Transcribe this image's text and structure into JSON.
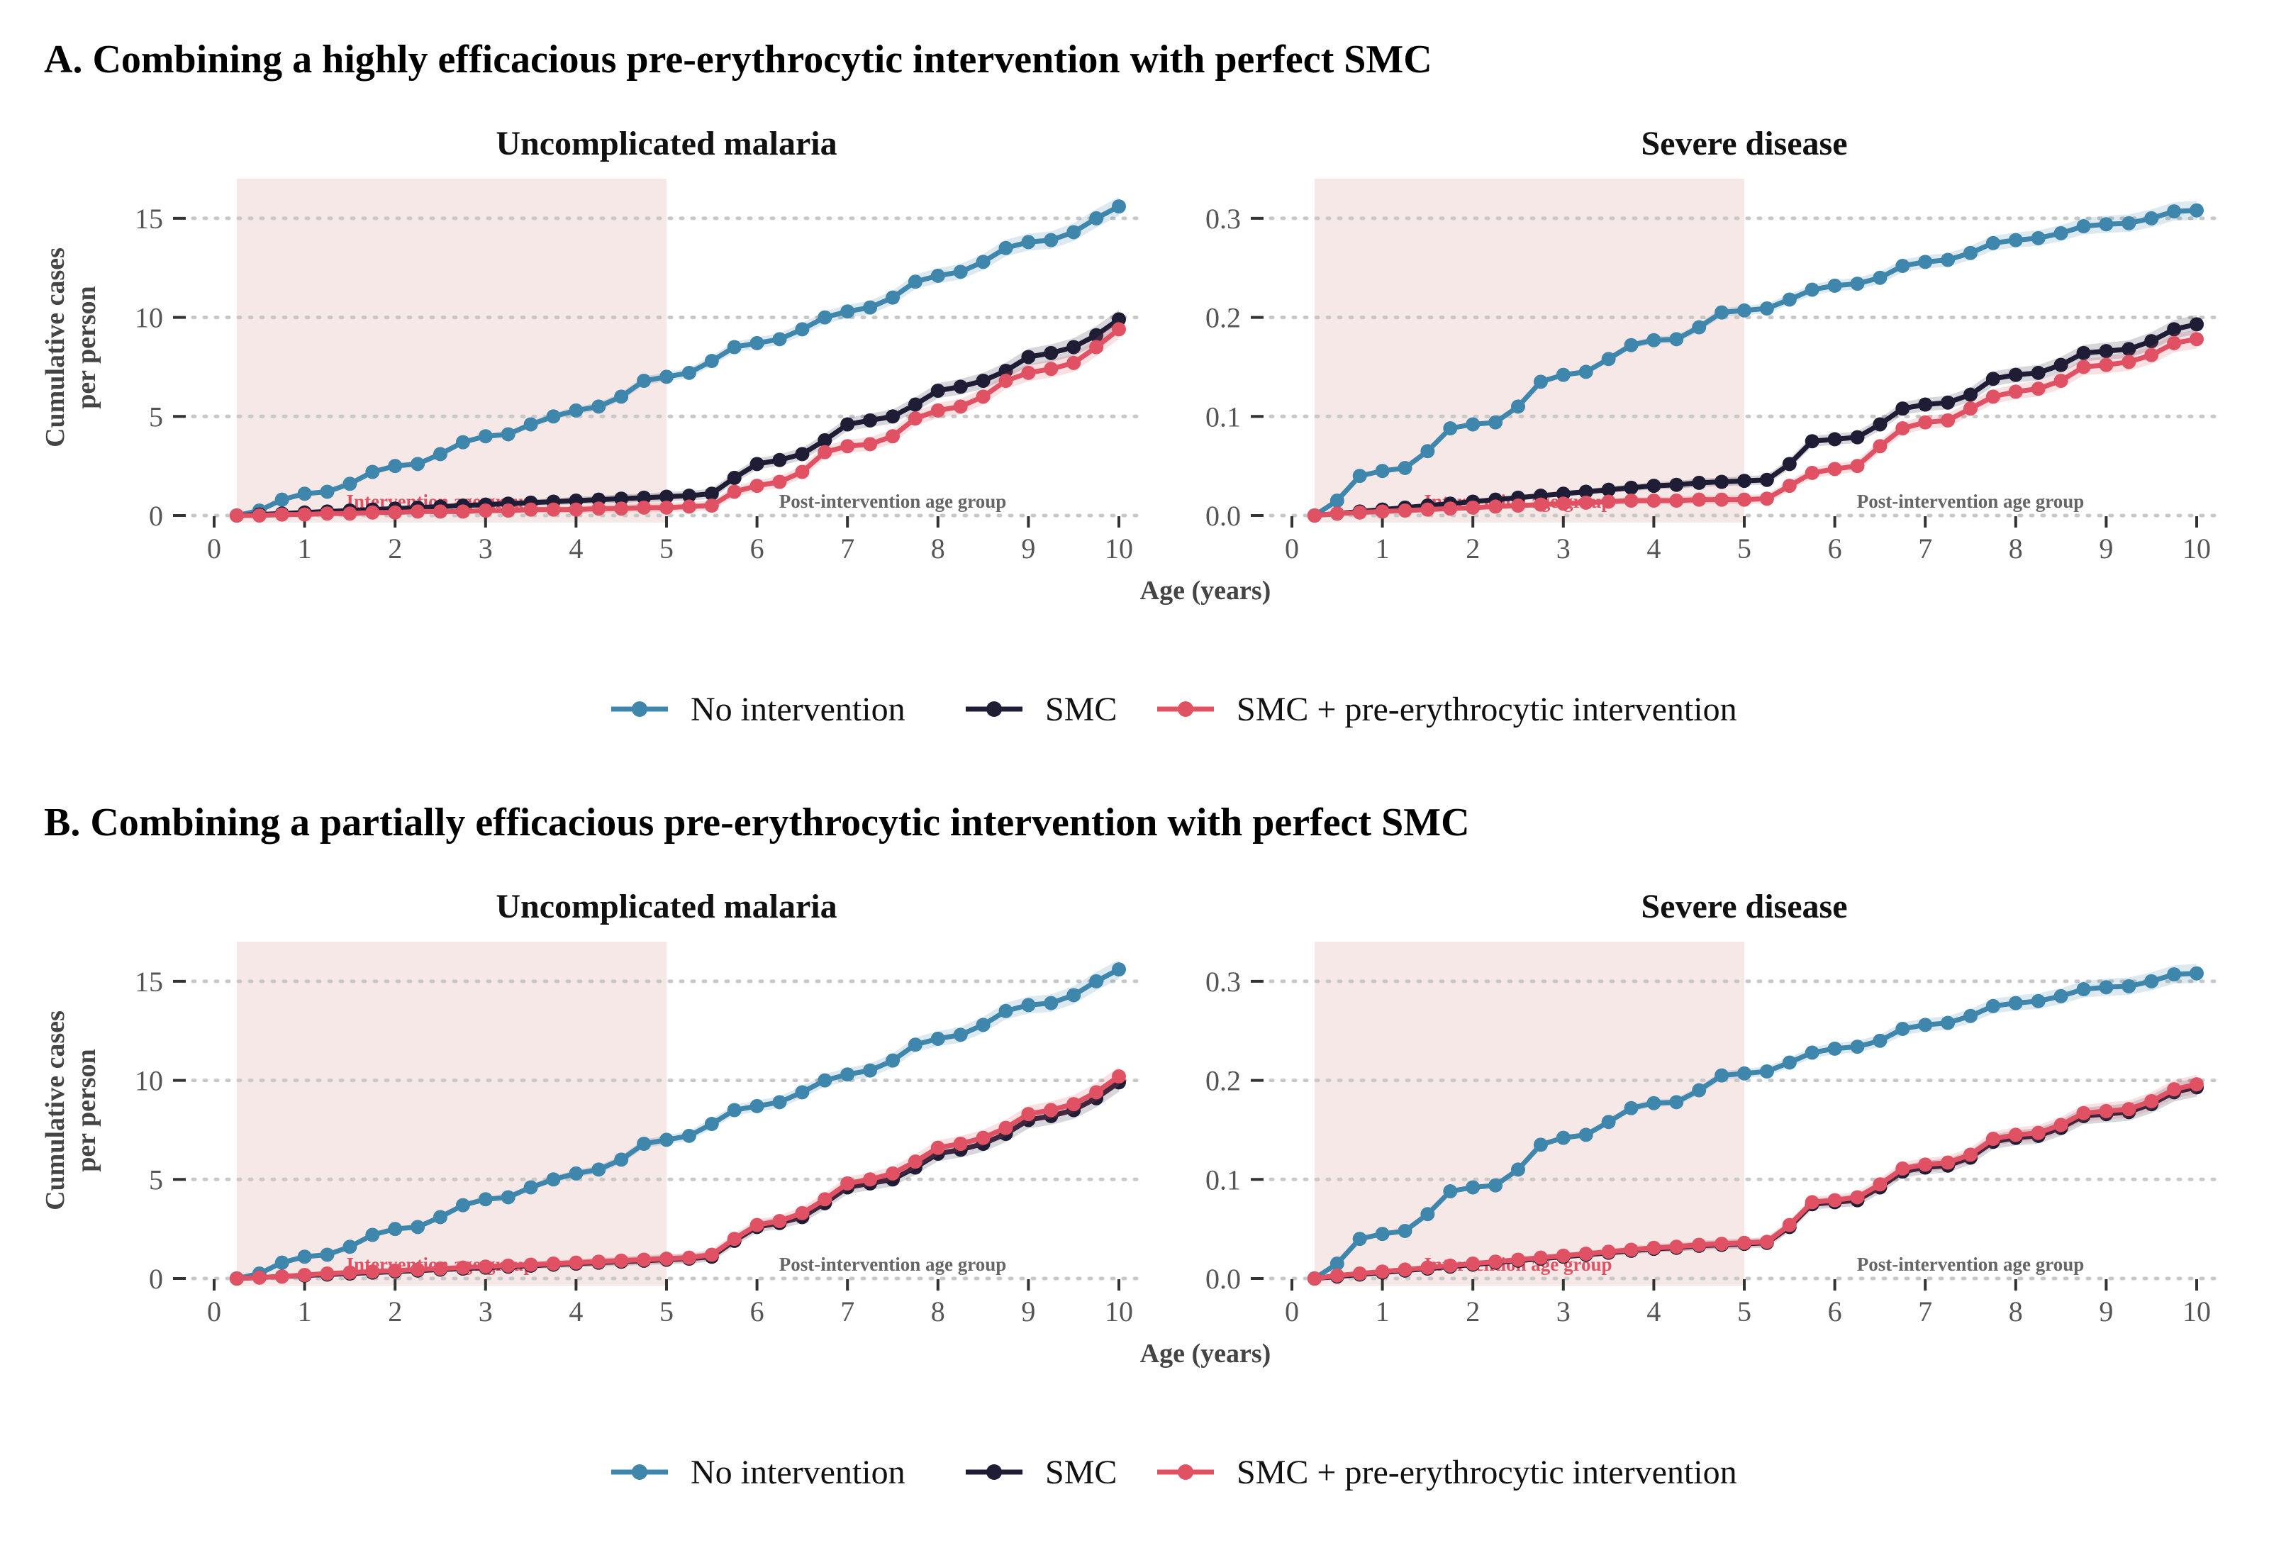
{
  "colors": {
    "no_intervention": "#3f86ad",
    "smc": "#1f1d36",
    "smc_pre": "#e05263",
    "shade": "#f6e8e6",
    "grid": "#c8c8c8"
  },
  "legend": [
    "No intervention",
    "SMC",
    "SMC + pre-erythrocytic intervention"
  ],
  "chart_data": [
    {
      "type": "line",
      "title": "A. Combining a highly efficacious pre-erythrocytic intervention with perfect SMC",
      "xlabel": "Age (years)",
      "ylabel": "Cumulative cases per person",
      "xlim": [
        0,
        10
      ],
      "x_ticks": [
        0,
        1,
        2,
        3,
        4,
        5,
        6,
        7,
        8,
        9,
        10
      ],
      "grid": "horizontal dotted",
      "legend_position": "bottom",
      "shaded_region": {
        "x": [
          0.25,
          5
        ],
        "labels": [
          "Intervention age group",
          "Post-intervention age group"
        ]
      },
      "facets": [
        {
          "title": "Uncomplicated malaria",
          "ylim": [
            0,
            17
          ],
          "y_ticks": [
            0,
            5,
            10,
            15
          ],
          "y_tick_labels": [
            "0",
            "5",
            "10",
            "15"
          ],
          "x_start": 0.25,
          "x_step": 0.25,
          "series": [
            {
              "name": "No intervention",
              "values": [
                0,
                0.25,
                0.8,
                1.1,
                1.2,
                1.6,
                2.2,
                2.5,
                2.6,
                3.1,
                3.7,
                4.0,
                4.1,
                4.6,
                5.0,
                5.3,
                5.5,
                6.0,
                6.8,
                7.0,
                7.2,
                7.8,
                8.5,
                8.7,
                8.9,
                9.4,
                10.0,
                10.3,
                10.5,
                11.0,
                11.8,
                12.1,
                12.3,
                12.8,
                13.5,
                13.8,
                13.9,
                14.3,
                15.0,
                15.6
              ]
            },
            {
              "name": "SMC",
              "values": [
                0,
                0.05,
                0.1,
                0.15,
                0.2,
                0.25,
                0.3,
                0.35,
                0.4,
                0.45,
                0.5,
                0.55,
                0.6,
                0.65,
                0.7,
                0.75,
                0.8,
                0.85,
                0.9,
                0.95,
                1.0,
                1.1,
                1.9,
                2.6,
                2.8,
                3.1,
                3.8,
                4.6,
                4.8,
                5.0,
                5.6,
                6.3,
                6.5,
                6.8,
                7.3,
                8.0,
                8.2,
                8.5,
                9.1,
                9.9
              ]
            },
            {
              "name": "SMC + pre-erythrocytic intervention",
              "values": [
                0,
                0.0,
                0.05,
                0.05,
                0.1,
                0.1,
                0.15,
                0.15,
                0.2,
                0.2,
                0.2,
                0.25,
                0.25,
                0.3,
                0.3,
                0.3,
                0.35,
                0.35,
                0.4,
                0.4,
                0.45,
                0.5,
                1.2,
                1.5,
                1.7,
                2.2,
                3.2,
                3.5,
                3.6,
                4.0,
                4.9,
                5.3,
                5.5,
                6.0,
                6.8,
                7.2,
                7.4,
                7.7,
                8.5,
                9.4
              ]
            }
          ]
        },
        {
          "title": "Severe disease",
          "ylim": [
            0,
            0.34
          ],
          "y_ticks": [
            0,
            0.1,
            0.2,
            0.3
          ],
          "y_tick_labels": [
            "0.0",
            "0.1",
            "0.2",
            "0.3"
          ],
          "x_start": 0.25,
          "x_step": 0.25,
          "series": [
            {
              "name": "No intervention",
              "values": [
                0,
                0.015,
                0.04,
                0.045,
                0.048,
                0.065,
                0.088,
                0.092,
                0.094,
                0.11,
                0.135,
                0.142,
                0.145,
                0.158,
                0.172,
                0.177,
                0.178,
                0.19,
                0.205,
                0.207,
                0.209,
                0.218,
                0.228,
                0.232,
                0.234,
                0.24,
                0.252,
                0.256,
                0.258,
                0.265,
                0.275,
                0.278,
                0.28,
                0.285,
                0.292,
                0.294,
                0.295,
                0.3,
                0.307,
                0.308
              ]
            },
            {
              "name": "SMC",
              "values": [
                0,
                0.002,
                0.004,
                0.006,
                0.008,
                0.01,
                0.012,
                0.014,
                0.016,
                0.018,
                0.02,
                0.022,
                0.024,
                0.026,
                0.028,
                0.03,
                0.031,
                0.033,
                0.034,
                0.035,
                0.036,
                0.052,
                0.075,
                0.077,
                0.079,
                0.092,
                0.108,
                0.112,
                0.114,
                0.122,
                0.138,
                0.142,
                0.144,
                0.152,
                0.164,
                0.166,
                0.168,
                0.176,
                0.188,
                0.193
              ]
            },
            {
              "name": "SMC + pre-erythrocytic intervention",
              "values": [
                0,
                0.002,
                0.003,
                0.004,
                0.005,
                0.006,
                0.007,
                0.008,
                0.009,
                0.01,
                0.011,
                0.012,
                0.013,
                0.014,
                0.015,
                0.015,
                0.015,
                0.016,
                0.016,
                0.016,
                0.017,
                0.03,
                0.043,
                0.047,
                0.05,
                0.07,
                0.088,
                0.094,
                0.096,
                0.108,
                0.12,
                0.125,
                0.128,
                0.136,
                0.15,
                0.152,
                0.155,
                0.162,
                0.174,
                0.178
              ]
            }
          ]
        }
      ]
    },
    {
      "type": "line",
      "title": "B. Combining a partially efficacious pre-erythrocytic intervention with perfect SMC",
      "xlabel": "Age (years)",
      "ylabel": "Cumulative cases per person",
      "xlim": [
        0,
        10
      ],
      "x_ticks": [
        0,
        1,
        2,
        3,
        4,
        5,
        6,
        7,
        8,
        9,
        10
      ],
      "grid": "horizontal dotted",
      "legend_position": "bottom",
      "shaded_region": {
        "x": [
          0.25,
          5
        ],
        "labels": [
          "Intervention age group",
          "Post-intervention age group"
        ]
      },
      "facets": [
        {
          "title": "Uncomplicated malaria",
          "ylim": [
            0,
            17
          ],
          "y_ticks": [
            0,
            5,
            10,
            15
          ],
          "y_tick_labels": [
            "0",
            "5",
            "10",
            "15"
          ],
          "x_start": 0.25,
          "x_step": 0.25,
          "series": [
            {
              "name": "No intervention",
              "values": [
                0,
                0.25,
                0.8,
                1.1,
                1.2,
                1.6,
                2.2,
                2.5,
                2.6,
                3.1,
                3.7,
                4.0,
                4.1,
                4.6,
                5.0,
                5.3,
                5.5,
                6.0,
                6.8,
                7.0,
                7.2,
                7.8,
                8.5,
                8.7,
                8.9,
                9.4,
                10.0,
                10.3,
                10.5,
                11.0,
                11.8,
                12.1,
                12.3,
                12.8,
                13.5,
                13.8,
                13.9,
                14.3,
                15.0,
                15.6
              ]
            },
            {
              "name": "SMC",
              "values": [
                0,
                0.05,
                0.1,
                0.15,
                0.2,
                0.25,
                0.3,
                0.35,
                0.4,
                0.45,
                0.5,
                0.55,
                0.6,
                0.65,
                0.7,
                0.75,
                0.8,
                0.85,
                0.9,
                0.95,
                1.0,
                1.1,
                1.9,
                2.6,
                2.8,
                3.1,
                3.8,
                4.6,
                4.8,
                5.0,
                5.6,
                6.3,
                6.5,
                6.8,
                7.3,
                8.0,
                8.2,
                8.5,
                9.1,
                9.9
              ]
            },
            {
              "name": "SMC + pre-erythrocytic intervention",
              "values": [
                0,
                0.05,
                0.1,
                0.18,
                0.25,
                0.3,
                0.35,
                0.4,
                0.45,
                0.5,
                0.55,
                0.6,
                0.65,
                0.7,
                0.75,
                0.8,
                0.85,
                0.9,
                0.95,
                1.0,
                1.05,
                1.2,
                2.0,
                2.7,
                2.9,
                3.3,
                4.0,
                4.8,
                5.0,
                5.3,
                5.9,
                6.6,
                6.8,
                7.1,
                7.6,
                8.3,
                8.5,
                8.8,
                9.4,
                10.2
              ]
            }
          ]
        },
        {
          "title": "Severe disease",
          "ylim": [
            0,
            0.34
          ],
          "y_ticks": [
            0,
            0.1,
            0.2,
            0.3
          ],
          "y_tick_labels": [
            "0.0",
            "0.1",
            "0.2",
            "0.3"
          ],
          "x_start": 0.25,
          "x_step": 0.25,
          "series": [
            {
              "name": "No intervention",
              "values": [
                0,
                0.015,
                0.04,
                0.045,
                0.048,
                0.065,
                0.088,
                0.092,
                0.094,
                0.11,
                0.135,
                0.142,
                0.145,
                0.158,
                0.172,
                0.177,
                0.178,
                0.19,
                0.205,
                0.207,
                0.209,
                0.218,
                0.228,
                0.232,
                0.234,
                0.24,
                0.252,
                0.256,
                0.258,
                0.265,
                0.275,
                0.278,
                0.28,
                0.285,
                0.292,
                0.294,
                0.295,
                0.3,
                0.307,
                0.308
              ]
            },
            {
              "name": "SMC",
              "values": [
                0,
                0.002,
                0.004,
                0.006,
                0.008,
                0.01,
                0.012,
                0.014,
                0.016,
                0.018,
                0.02,
                0.022,
                0.024,
                0.026,
                0.028,
                0.03,
                0.031,
                0.033,
                0.034,
                0.035,
                0.036,
                0.052,
                0.075,
                0.077,
                0.079,
                0.092,
                0.108,
                0.112,
                0.114,
                0.122,
                0.138,
                0.142,
                0.144,
                0.152,
                0.164,
                0.166,
                0.168,
                0.176,
                0.188,
                0.193
              ]
            },
            {
              "name": "SMC + pre-erythrocytic intervention",
              "values": [
                0,
                0.003,
                0.005,
                0.007,
                0.009,
                0.011,
                0.013,
                0.015,
                0.017,
                0.019,
                0.021,
                0.023,
                0.025,
                0.027,
                0.029,
                0.031,
                0.032,
                0.034,
                0.035,
                0.036,
                0.037,
                0.054,
                0.077,
                0.079,
                0.082,
                0.095,
                0.111,
                0.115,
                0.117,
                0.125,
                0.141,
                0.145,
                0.147,
                0.155,
                0.167,
                0.169,
                0.171,
                0.179,
                0.191,
                0.196
              ]
            }
          ]
        }
      ]
    }
  ]
}
